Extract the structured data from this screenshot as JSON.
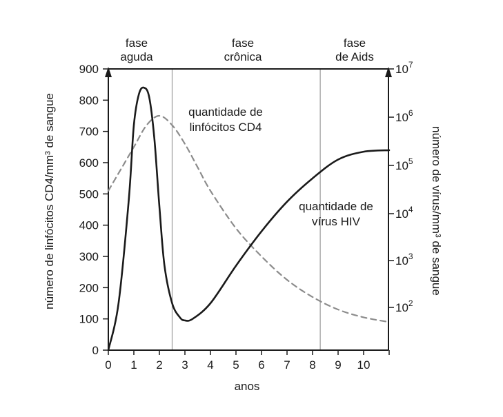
{
  "chart_data": {
    "type": "line",
    "xlabel": "anos",
    "ylabel_left": "número de linfócitos CD4/mm³ de sangue",
    "ylabel_right": "número de vírus/mm³ de sangue",
    "x_ticks": [
      0,
      1,
      2,
      3,
      4,
      5,
      6,
      7,
      8,
      9,
      10
    ],
    "xlim": [
      0,
      11
    ],
    "ylim_left": [
      0,
      900
    ],
    "y_ticks_left": [
      0,
      100,
      200,
      300,
      400,
      500,
      600,
      700,
      800,
      900
    ],
    "y_ticks_right": [
      {
        "base": "10",
        "exp": "2",
        "value": 100
      },
      {
        "base": "10",
        "exp": "3",
        "value": 1000
      },
      {
        "base": "10",
        "exp": "4",
        "value": 10000
      },
      {
        "base": "10",
        "exp": "5",
        "value": 100000
      },
      {
        "base": "10",
        "exp": "6",
        "value": 1000000
      },
      {
        "base": "10",
        "exp": "7",
        "value": 10000000
      }
    ],
    "right_scale": "log",
    "phases": [
      {
        "label_top": "fase",
        "label_bottom": "aguda",
        "x_start": 0,
        "x_end": 2.5
      },
      {
        "label_top": "fase",
        "label_bottom": "crônica",
        "x_start": 2.5,
        "x_end": 8.3
      },
      {
        "label_top": "fase",
        "label_bottom": "de Aids",
        "x_start": 8.3,
        "x_end": 11
      }
    ],
    "series": [
      {
        "annotation": [
          "quantidade de",
          "linfócitos CD4"
        ],
        "axis": "left",
        "style": "dashed",
        "color": "#8c8c8c",
        "x": [
          0,
          0.5,
          1,
          1.5,
          2,
          2.5,
          3,
          3.5,
          4,
          5,
          6,
          7,
          8,
          9,
          10,
          11
        ],
        "y": [
          510,
          580,
          650,
          720,
          750,
          720,
          660,
          585,
          510,
          390,
          300,
          225,
          170,
          130,
          105,
          90
        ]
      },
      {
        "annotation": [
          "quantidade de",
          "vírus HIV"
        ],
        "axis": "left",
        "style": "solid",
        "color": "#1a1a1a",
        "x": [
          0,
          0.4,
          0.8,
          1.0,
          1.2,
          1.4,
          1.6,
          1.8,
          2.0,
          2.2,
          2.5,
          2.8,
          3.0,
          3.3,
          4,
          5,
          6,
          7,
          8,
          9,
          10,
          11
        ],
        "y": [
          0,
          150,
          480,
          720,
          820,
          840,
          810,
          680,
          460,
          270,
          150,
          105,
          95,
          100,
          150,
          270,
          380,
          475,
          550,
          610,
          635,
          640
        ]
      }
    ]
  }
}
